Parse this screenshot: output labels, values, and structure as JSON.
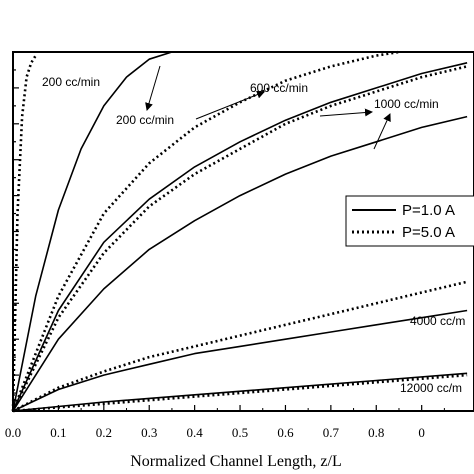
{
  "chart_data": {
    "type": "line",
    "xlabel": "Normalized Channel Length, z/L",
    "ylabel": "",
    "xlim": [
      0,
      1.0
    ],
    "ylim": [
      0,
      1.0
    ],
    "x_ticks": [
      "0.0",
      "0.1",
      "0.2",
      "0.3",
      "0.4",
      "0.5",
      "0.6",
      "0.7",
      "0.8",
      "0"
    ],
    "legend": {
      "placement": "right",
      "entries": [
        {
          "label": "P=1.0 A",
          "style": "solid"
        },
        {
          "label": "P=5.0 A",
          "style": "dotted"
        }
      ]
    },
    "annotations": [
      {
        "text": "200 cc/min"
      },
      {
        "text": "200 cc/min"
      },
      {
        "text": "600 cc/min"
      },
      {
        "text": "1000 cc/min"
      },
      {
        "text": "4000 cc/m"
      },
      {
        "text": "12000 cc/m"
      }
    ],
    "series": [
      {
        "style": "dotted",
        "flow": "200",
        "x": [
          0,
          0.01,
          0.02,
          0.03,
          0.04,
          0.05
        ],
        "y": [
          0,
          0.55,
          0.82,
          0.93,
          0.97,
          0.99
        ]
      },
      {
        "style": "solid",
        "flow": "200",
        "x": [
          0,
          0.05,
          0.1,
          0.15,
          0.2,
          0.25,
          0.3,
          0.35
        ],
        "y": [
          0,
          0.32,
          0.56,
          0.73,
          0.85,
          0.93,
          0.98,
          1.0
        ]
      },
      {
        "style": "dotted",
        "flow": "600",
        "x": [
          0,
          0.1,
          0.2,
          0.3,
          0.4,
          0.5,
          0.6,
          0.7,
          0.8,
          0.85
        ],
        "y": [
          0,
          0.32,
          0.55,
          0.69,
          0.79,
          0.86,
          0.92,
          0.96,
          0.99,
          1.0
        ]
      },
      {
        "style": "solid",
        "flow": "600",
        "x": [
          0,
          0.1,
          0.2,
          0.3,
          0.4,
          0.5,
          0.6,
          0.7,
          0.8,
          0.9,
          1.0
        ],
        "y": [
          0,
          0.28,
          0.47,
          0.59,
          0.68,
          0.75,
          0.81,
          0.86,
          0.9,
          0.94,
          0.97
        ]
      },
      {
        "style": "dotted",
        "flow": "1000",
        "x": [
          0,
          0.1,
          0.2,
          0.3,
          0.4,
          0.5,
          0.6,
          0.7,
          0.8,
          0.9,
          1.0
        ],
        "y": [
          0,
          0.26,
          0.44,
          0.57,
          0.66,
          0.73,
          0.8,
          0.85,
          0.89,
          0.93,
          0.96
        ]
      },
      {
        "style": "solid",
        "flow": "1000",
        "x": [
          0,
          0.1,
          0.2,
          0.3,
          0.4,
          0.5,
          0.6,
          0.7,
          0.8,
          0.9,
          1.0
        ],
        "y": [
          0,
          0.2,
          0.34,
          0.45,
          0.53,
          0.6,
          0.66,
          0.71,
          0.75,
          0.79,
          0.82
        ]
      },
      {
        "style": "dotted",
        "flow": "4000",
        "x": [
          0,
          0.1,
          0.2,
          0.3,
          0.4,
          0.5,
          0.6,
          0.7,
          0.8,
          0.9,
          1.0
        ],
        "y": [
          0,
          0.065,
          0.11,
          0.15,
          0.18,
          0.21,
          0.24,
          0.27,
          0.3,
          0.33,
          0.36
        ]
      },
      {
        "style": "solid",
        "flow": "4000",
        "x": [
          0,
          0.1,
          0.2,
          0.3,
          0.4,
          0.5,
          0.6,
          0.7,
          0.8,
          0.9,
          1.0
        ],
        "y": [
          0,
          0.06,
          0.1,
          0.13,
          0.16,
          0.18,
          0.2,
          0.22,
          0.24,
          0.26,
          0.28
        ]
      },
      {
        "style": "dotted",
        "flow": "12000",
        "x": [
          0,
          0.2,
          0.4,
          0.6,
          0.8,
          1.0
        ],
        "y": [
          0,
          0.02,
          0.04,
          0.06,
          0.08,
          0.1
        ]
      },
      {
        "style": "solid",
        "flow": "12000",
        "x": [
          0,
          0.2,
          0.4,
          0.6,
          0.8,
          1.0
        ],
        "y": [
          0,
          0.025,
          0.045,
          0.065,
          0.085,
          0.105
        ]
      }
    ]
  }
}
